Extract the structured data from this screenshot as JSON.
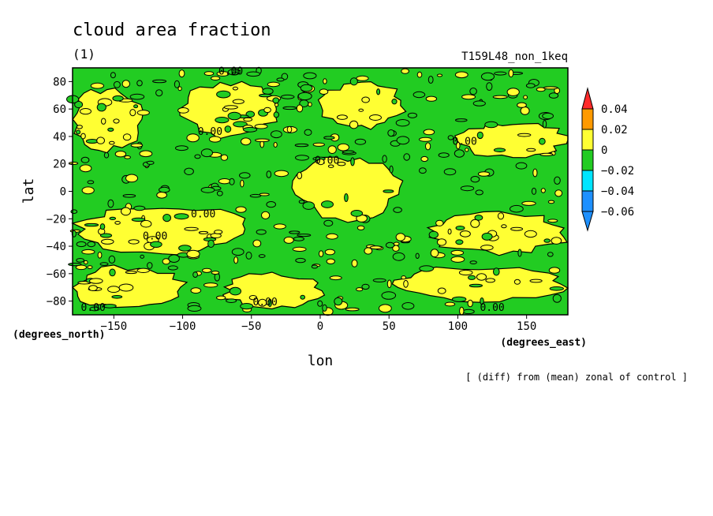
{
  "chart_data": {
    "type": "heatmap",
    "title": "cloud area fraction",
    "panel_label": "(1)",
    "experiment": "T159L48_non_1keq",
    "xlabel": "lon",
    "ylabel": "lat",
    "x_units": "(degrees_east)",
    "y_units": "(degrees_north)",
    "note": "[ (diff) from (mean) zonal of control ]",
    "xlim": [
      -180,
      180
    ],
    "ylim": [
      -90,
      90
    ],
    "x_ticks": [
      -150,
      -100,
      -50,
      0,
      50,
      100,
      150
    ],
    "y_ticks": [
      -80,
      -60,
      -40,
      -20,
      0,
      20,
      40,
      60,
      80
    ],
    "contour_label": "0.00",
    "colorbar": {
      "levels": [
        -0.06,
        -0.04,
        -0.02,
        0,
        0.02,
        0.04
      ],
      "level_labels": [
        "−0.06",
        "−0.04",
        "−0.02",
        "0",
        "0.02",
        "0.04"
      ],
      "colors": [
        "#1e90ff",
        "#00e5ff",
        "#22cc22",
        "#ffff33",
        "#ff9a00",
        "#ff2a2a"
      ],
      "below_color": "#1e90ff",
      "above_color": "#ff2a2a"
    },
    "regions": [
      {
        "value": "0 to 0.02",
        "lon": [
          -180,
          -130
        ],
        "lat": [
          30,
          75
        ]
      },
      {
        "value": "0 to 0.02",
        "lon": [
          -100,
          -30
        ],
        "lat": [
          40,
          80
        ]
      },
      {
        "value": "0 to 0.02",
        "lon": [
          0,
          60
        ],
        "lat": [
          45,
          80
        ]
      },
      {
        "value": "0 to 0.02",
        "lon": [
          100,
          180
        ],
        "lat": [
          25,
          50
        ]
      },
      {
        "value": "0 to 0.02",
        "lon": [
          -20,
          60
        ],
        "lat": [
          -20,
          25
        ]
      },
      {
        "value": "0 to 0.02",
        "lon": [
          -180,
          -50
        ],
        "lat": [
          -45,
          -10
        ]
      },
      {
        "value": "0 to 0.02",
        "lon": [
          80,
          180
        ],
        "lat": [
          -45,
          -15
        ]
      },
      {
        "value": "0 to 0.02",
        "lon": [
          -180,
          -100
        ],
        "lat": [
          -85,
          -55
        ]
      },
      {
        "value": "0 to 0.02",
        "lon": [
          -70,
          0
        ],
        "lat": [
          -85,
          -60
        ]
      },
      {
        "value": "0 to 0.02",
        "lon": [
          50,
          180
        ],
        "lat": [
          -80,
          -55
        ]
      }
    ]
  }
}
